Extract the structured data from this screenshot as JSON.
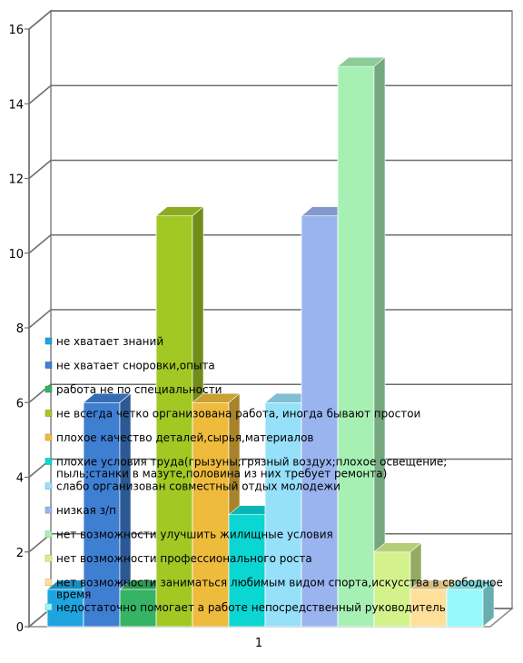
{
  "chart_data": {
    "type": "bar",
    "categories": [
      "1"
    ],
    "ylim": [
      0,
      16
    ],
    "yticks": [
      0,
      2,
      4,
      6,
      8,
      10,
      12,
      14,
      16
    ],
    "grid": true,
    "legend_placement": "inside-left",
    "series": [
      {
        "name": "не хватает знаний",
        "values": [
          1
        ],
        "color": "#1ea5e0"
      },
      {
        "name": "не хватает сноровки,опыта",
        "values": [
          6
        ],
        "color": "#3f7fd2"
      },
      {
        "name": "работа не по специальности",
        "values": [
          1
        ],
        "color": "#34b464"
      },
      {
        "name": "не всегда четко организована работа, иногда бывают простои",
        "values": [
          11
        ],
        "color": "#a2c824"
      },
      {
        "name": "плохое качество деталей,сырья,материалов",
        "values": [
          6
        ],
        "color": "#eebb3c"
      },
      {
        "name": "плохие условия труда(грызуны;грязный воздух;плохое освещение; пыль;станки в мазуте,половина из них требует ремонта)",
        "values": [
          3
        ],
        "color": "#0cd6d2"
      },
      {
        "name": "слабо организован совместный отдых молодежи",
        "values": [
          6
        ],
        "color": "#96e0fa"
      },
      {
        "name": "низкая з/п",
        "values": [
          11
        ],
        "color": "#9ab4f0"
      },
      {
        "name": "нет возможности улучшить жилищные условия",
        "values": [
          15
        ],
        "color": "#a6f0b4"
      },
      {
        "name": "нет возможности профессионального роста",
        "values": [
          2
        ],
        "color": "#d4f28c"
      },
      {
        "name": "нет возможности заниматься любимым видом спорта,искусства в свободное время",
        "values": [
          1
        ],
        "color": "#ffe09a"
      },
      {
        "name": "недостаточно помогает а работе непосредственный руководитель",
        "values": [
          1
        ],
        "color": "#96f8fa"
      }
    ]
  }
}
